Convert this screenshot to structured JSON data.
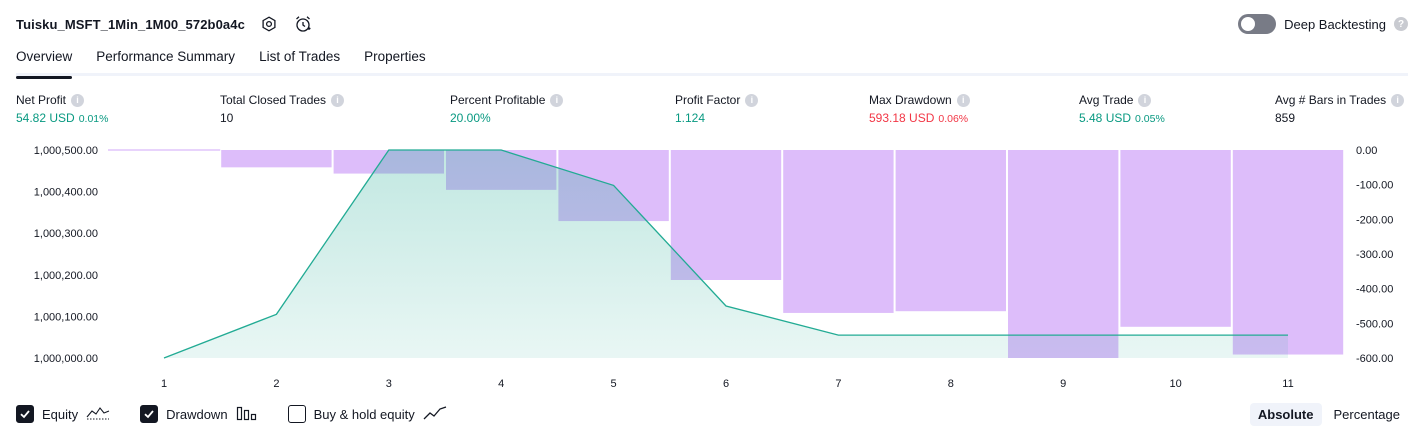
{
  "header": {
    "strategy_name": "Tuisku_MSFT_1Min_1M00_572b0a4c",
    "settings_icon": "settings-icon",
    "alert_icon": "alarm-clock-icon"
  },
  "deep_backtesting": {
    "label": "Deep Backtesting",
    "enabled": false,
    "help": "?"
  },
  "tabs": [
    {
      "label": "Overview",
      "active": true
    },
    {
      "label": "Performance Summary",
      "active": false
    },
    {
      "label": "List of Trades",
      "active": false
    },
    {
      "label": "Properties",
      "active": false
    }
  ],
  "metrics": [
    {
      "title": "Net Profit",
      "value": "54.82 USD",
      "pct": "0.01%",
      "color": "green"
    },
    {
      "title": "Total Closed Trades",
      "value": "10",
      "pct": "",
      "color": "dark"
    },
    {
      "title": "Percent Profitable",
      "value": "20.00%",
      "pct": "",
      "color": "green"
    },
    {
      "title": "Profit Factor",
      "value": "1.124",
      "pct": "",
      "color": "green"
    },
    {
      "title": "Max Drawdown",
      "value": "593.18 USD",
      "pct": "0.06%",
      "color": "red"
    },
    {
      "title": "Avg Trade",
      "value": "5.48 USD",
      "pct": "0.05%",
      "color": "green"
    },
    {
      "title": "Avg # Bars in Trades",
      "value": "859",
      "pct": "",
      "color": "dark"
    }
  ],
  "chart_data": {
    "type": "area",
    "x": [
      1,
      2,
      3,
      4,
      5,
      6,
      7,
      8,
      9,
      10,
      11
    ],
    "series": [
      {
        "kind": "line-area",
        "axis": "left",
        "color": "#22ab94",
        "values": [
          1000000,
          1000105,
          1000500,
          1000500,
          1000415,
          1000125,
          1000055,
          1000055,
          1000055,
          1000055,
          1000055
        ]
      },
      {
        "kind": "bar",
        "axis": "right",
        "color": "#d1a7f8",
        "values": [
          0,
          -50,
          -68,
          -115,
          -205,
          -375,
          -470,
          -465,
          -600,
          -510,
          -590
        ]
      }
    ],
    "left_axis": {
      "ticks": [
        "1,000,500.00",
        "1,000,400.00",
        "1,000,300.00",
        "1,000,200.00",
        "1,000,100.00",
        "1,000,000.00"
      ],
      "range": [
        1000000,
        1000500
      ]
    },
    "right_axis": {
      "ticks": [
        "0.00",
        "-100.00",
        "-200.00",
        "-300.00",
        "-400.00",
        "-500.00",
        "-600.00"
      ],
      "range": [
        -600,
        0
      ]
    },
    "x_ticks": [
      "1",
      "2",
      "3",
      "4",
      "5",
      "6",
      "7",
      "8",
      "9",
      "10",
      "11"
    ]
  },
  "footer": {
    "legend": [
      {
        "label": "Equity",
        "checked": true,
        "icon": "equity-line-icon"
      },
      {
        "label": "Drawdown",
        "checked": true,
        "icon": "drawdown-bars-icon"
      },
      {
        "label": "Buy & hold equity",
        "checked": false,
        "icon": "buy-hold-line-icon"
      }
    ],
    "modes": [
      {
        "label": "Absolute",
        "active": true
      },
      {
        "label": "Percentage",
        "active": false
      }
    ]
  }
}
